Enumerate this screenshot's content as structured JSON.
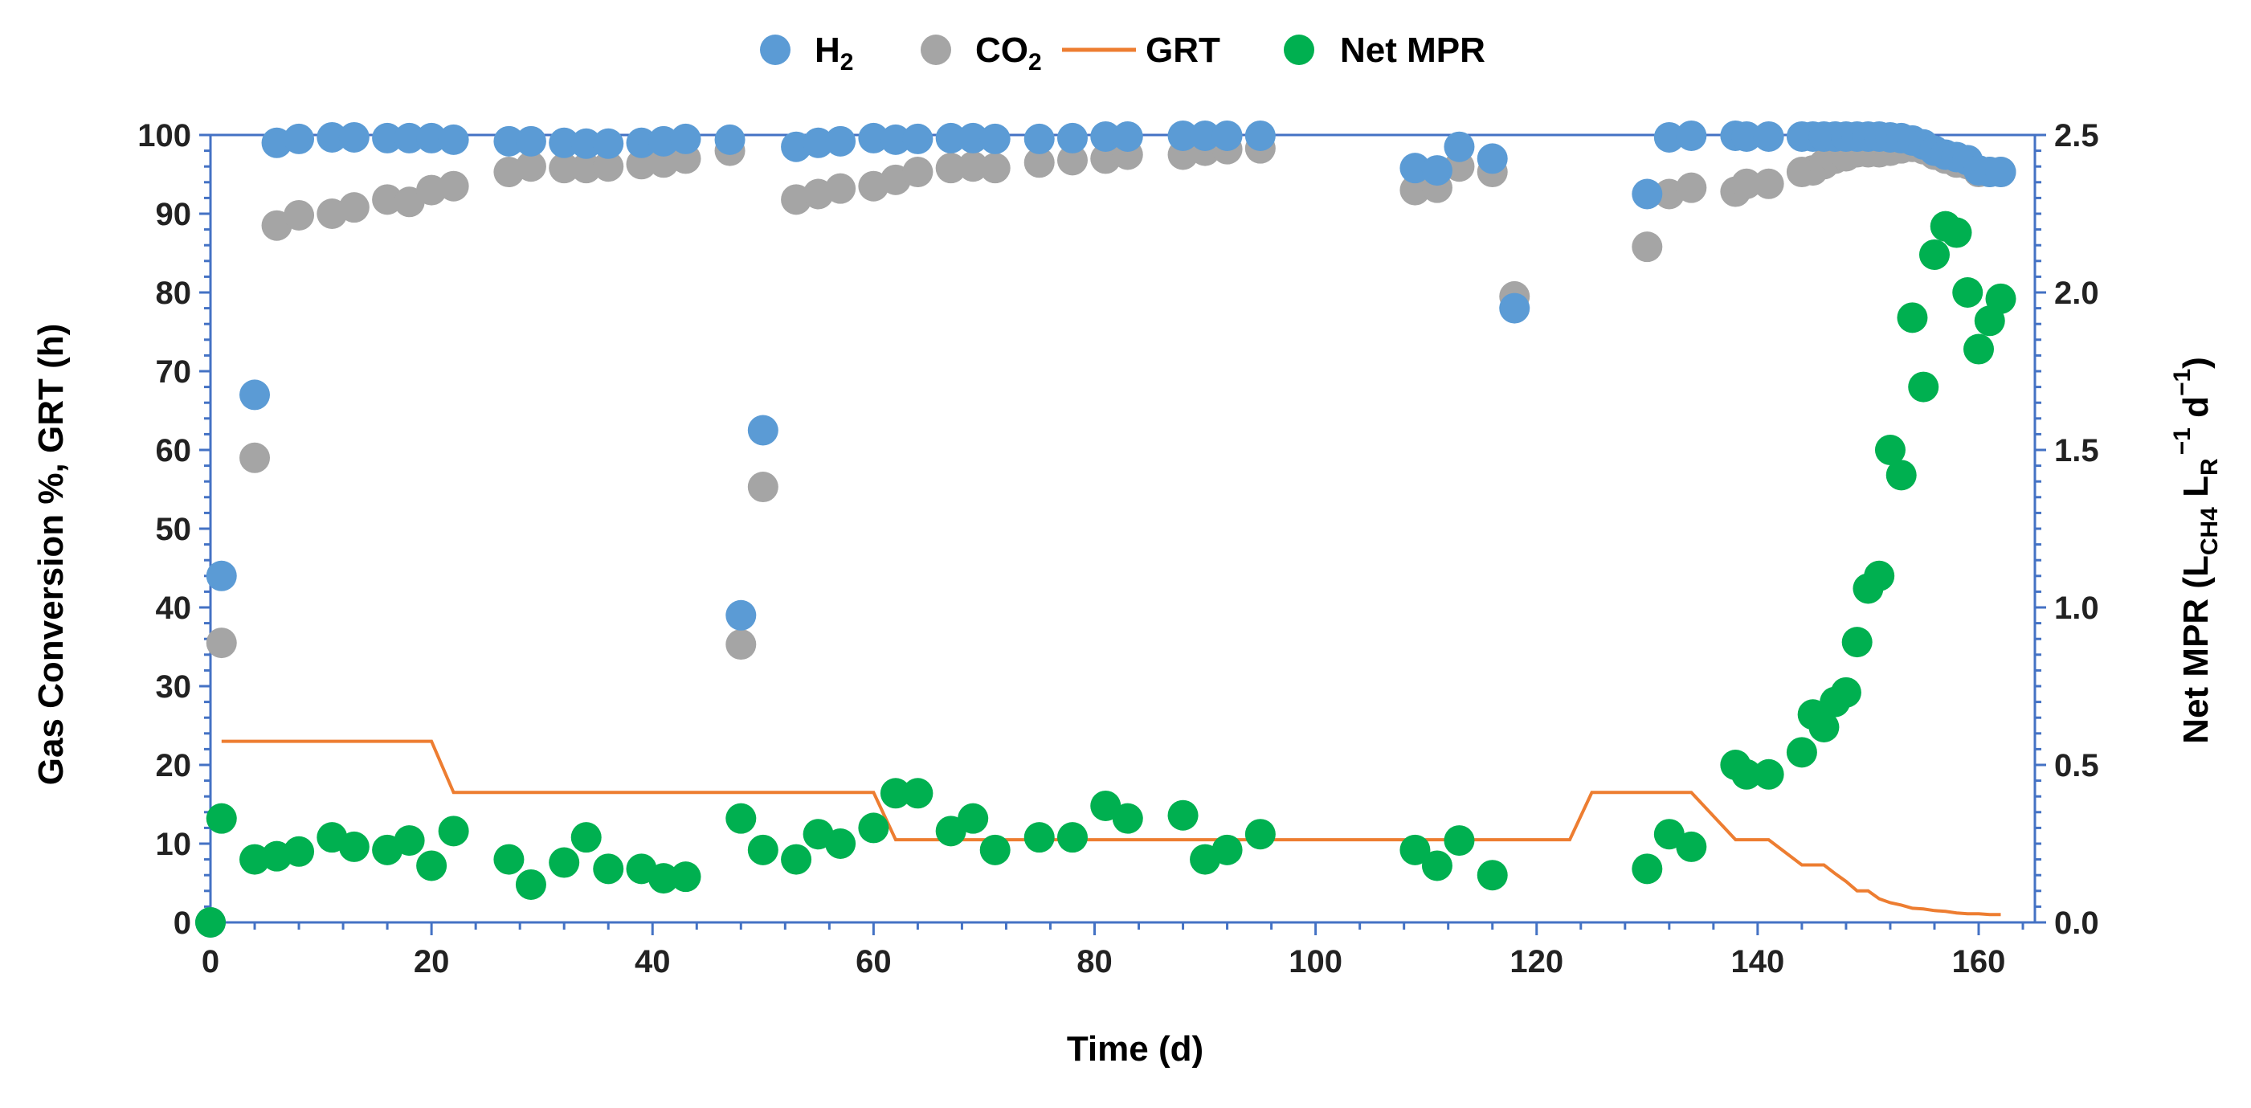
{
  "chart_data": {
    "type": "scatter",
    "xlabel": "Time (d)",
    "ylabel_left": "Gas Conversion %, GRT (h)",
    "ylabel_right": {
      "main": "Net MPR (L",
      "sub1": "CH4",
      "mid": " L",
      "sub2": "R",
      "sup1": "−1",
      "end": " d",
      "sup2": "−1",
      "close": ")"
    },
    "xlim": [
      0,
      165
    ],
    "xticks": [
      0,
      20,
      40,
      60,
      80,
      100,
      120,
      140,
      160
    ],
    "ylim_left": [
      0,
      100
    ],
    "yticks_left": [
      0,
      10,
      20,
      30,
      40,
      50,
      60,
      70,
      80,
      90,
      100
    ],
    "ylim_right": [
      0,
      2.5
    ],
    "yticks_right": [
      "0.0",
      "0.5",
      "1.0",
      "1.5",
      "2.0",
      "2.5"
    ],
    "grid": false,
    "legend_position": "top",
    "legend": [
      {
        "key": "h2",
        "label": "H",
        "sub": "2",
        "kind": "marker"
      },
      {
        "key": "co2",
        "label": "CO",
        "sub": "2",
        "kind": "marker"
      },
      {
        "key": "grt",
        "label": "GRT",
        "sub": "",
        "kind": "line"
      },
      {
        "key": "mpr",
        "label": "Net MPR",
        "sub": "",
        "kind": "marker"
      }
    ],
    "colors": {
      "h2": "#5B9BD5",
      "co2": "#A5A5A5",
      "grt": "#ED7D31",
      "mpr": "#00B050",
      "axis": "#4472C4"
    },
    "series": {
      "h2": {
        "axis": "left",
        "x": [
          0,
          1,
          4,
          6,
          8,
          11,
          13,
          16,
          18,
          20,
          22,
          27,
          29,
          32,
          34,
          36,
          39,
          41,
          43,
          47,
          48,
          50,
          53,
          55,
          57,
          60,
          62,
          64,
          67,
          69,
          71,
          75,
          78,
          81,
          83,
          88,
          90,
          92,
          95,
          109,
          111,
          113,
          116,
          118,
          130,
          132,
          134,
          138,
          139,
          141,
          144,
          145,
          146,
          147,
          148,
          149,
          150,
          151,
          152,
          153,
          154,
          155,
          156,
          157,
          158,
          159,
          160,
          161,
          162
        ],
        "y": [
          0,
          44,
          67,
          99,
          99.5,
          99.7,
          99.7,
          99.6,
          99.6,
          99.6,
          99.4,
          99.2,
          99.2,
          99,
          98.9,
          98.9,
          99,
          99.2,
          99.5,
          99.4,
          39,
          62.5,
          98.5,
          99,
          99.2,
          99.6,
          99.4,
          99.5,
          99.6,
          99.6,
          99.5,
          99.5,
          99.6,
          99.8,
          99.8,
          99.9,
          99.9,
          99.9,
          99.9,
          95.8,
          95.5,
          98.5,
          97,
          78,
          92.5,
          99.7,
          99.9,
          99.9,
          99.8,
          99.8,
          99.8,
          99.8,
          99.8,
          99.8,
          99.8,
          99.8,
          99.8,
          99.8,
          99.7,
          99.6,
          99.3,
          98.8,
          98,
          97.5,
          97.2,
          96.8,
          95.5,
          95.3,
          95.3
        ]
      },
      "co2": {
        "axis": "left",
        "x": [
          0,
          1,
          4,
          6,
          8,
          11,
          13,
          16,
          18,
          20,
          22,
          27,
          29,
          32,
          34,
          36,
          39,
          41,
          43,
          47,
          48,
          50,
          53,
          55,
          57,
          60,
          62,
          64,
          67,
          69,
          71,
          75,
          78,
          81,
          83,
          88,
          90,
          92,
          95,
          109,
          111,
          113,
          116,
          118,
          130,
          132,
          134,
          138,
          139,
          141,
          144,
          145,
          146,
          147,
          148,
          149,
          150,
          151,
          152,
          153,
          154,
          155,
          156,
          157,
          158,
          159,
          160,
          161,
          162
        ],
        "y": [
          0,
          35.5,
          59,
          88.5,
          89.8,
          90,
          90.8,
          91.8,
          91.5,
          93,
          93.5,
          95.3,
          96,
          95.8,
          95.8,
          96,
          96.3,
          96.5,
          97,
          98,
          35.3,
          55.3,
          91.8,
          92.5,
          93.2,
          93.5,
          94.3,
          95.3,
          95.8,
          96,
          95.8,
          96.5,
          96.8,
          97,
          97.5,
          97.5,
          98,
          98.2,
          98.3,
          93,
          93.3,
          96,
          95.3,
          79.5,
          85.8,
          92.5,
          93.3,
          92.8,
          93.8,
          93.8,
          95.3,
          95.5,
          96.3,
          97,
          97.3,
          97.8,
          97.8,
          97.8,
          98,
          98.3,
          98.5,
          98.2,
          97.5,
          97,
          96.5,
          96.3,
          95.3,
          95.3,
          95.3
        ]
      },
      "grt": {
        "axis": "left",
        "x": [
          1,
          20,
          22,
          60,
          62,
          123,
          125,
          134,
          138,
          141,
          144,
          146,
          147,
          148,
          149,
          150,
          151,
          152,
          153,
          154,
          155,
          156,
          157,
          158,
          159,
          160,
          161,
          162
        ],
        "y": [
          23,
          23,
          16.5,
          16.5,
          10.5,
          10.5,
          16.5,
          16.5,
          10.5,
          10.5,
          7.3,
          7.3,
          6.2,
          5.2,
          4,
          4,
          3,
          2.5,
          2.2,
          1.8,
          1.7,
          1.5,
          1.4,
          1.2,
          1.1,
          1.1,
          1,
          1
        ]
      },
      "mpr": {
        "axis": "right",
        "x": [
          0,
          1,
          4,
          6,
          8,
          11,
          13,
          16,
          18,
          20,
          22,
          27,
          29,
          32,
          34,
          36,
          39,
          41,
          43,
          48,
          50,
          53,
          55,
          57,
          60,
          62,
          64,
          67,
          69,
          71,
          75,
          78,
          81,
          83,
          88,
          90,
          92,
          95,
          109,
          111,
          113,
          116,
          130,
          132,
          134,
          138,
          139,
          141,
          144,
          145,
          146,
          147,
          148,
          149,
          150,
          151,
          152,
          153,
          154,
          155,
          156,
          157,
          158,
          159,
          160,
          161,
          162
        ],
        "y": [
          0,
          0.33,
          0.2,
          0.21,
          0.225,
          0.27,
          0.24,
          0.23,
          0.26,
          0.18,
          0.29,
          0.2,
          0.12,
          0.19,
          0.27,
          0.17,
          0.17,
          0.14,
          0.145,
          0.33,
          0.23,
          0.2,
          0.28,
          0.25,
          0.3,
          0.41,
          0.41,
          0.29,
          0.33,
          0.23,
          0.27,
          0.27,
          0.37,
          0.33,
          0.34,
          0.2,
          0.23,
          0.28,
          0.23,
          0.18,
          0.26,
          0.15,
          0.17,
          0.28,
          0.24,
          0.5,
          0.47,
          0.47,
          0.54,
          0.66,
          0.62,
          0.7,
          0.73,
          0.89,
          1.06,
          1.1,
          1.5,
          1.42,
          1.92,
          1.7,
          2.12,
          2.21,
          2.19,
          2.0,
          1.82,
          1.91,
          1.98
        ]
      }
    }
  }
}
